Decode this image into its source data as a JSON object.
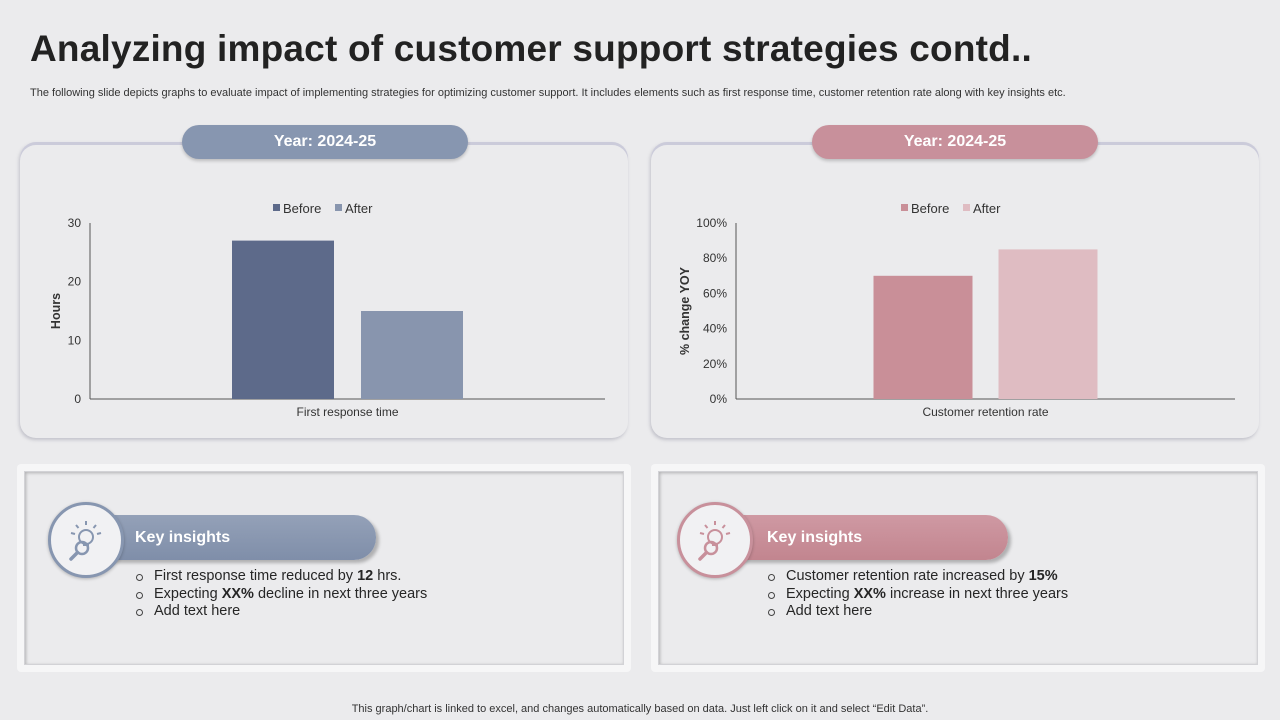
{
  "title": "Analyzing impact of customer support strategies contd..",
  "subtitle": "The following slide depicts graphs to evaluate impact of implementing strategies for optimizing customer support. It includes elements such as first response time, customer retention rate along with key insights etc.",
  "left_panel": {
    "year_label": "Year: 2024-25",
    "insights_title": "Key insights",
    "insights": [
      {
        "pre": "First response time reduced by ",
        "bold": "12",
        "post": " hrs."
      },
      {
        "pre": "Expecting ",
        "bold": "XX%",
        "post": " decline in next three years"
      },
      {
        "pre": "Add text here",
        "bold": "",
        "post": ""
      }
    ]
  },
  "right_panel": {
    "year_label": "Year: 2024-25",
    "insights_title": "Key insights",
    "insights": [
      {
        "pre": "Customer retention rate increased by ",
        "bold": "15%",
        "post": ""
      },
      {
        "pre": "Expecting ",
        "bold": "XX%",
        "post": " increase in next three years"
      },
      {
        "pre": "Add text here",
        "bold": "",
        "post": ""
      }
    ]
  },
  "footer": "This graph/chart is linked to excel, and changes automatically based on data. Just left click on it and select “Edit Data”.",
  "chart_data": [
    {
      "type": "bar",
      "categories": [
        "First response time"
      ],
      "series": [
        {
          "name": "Before",
          "values": [
            27
          ],
          "color": "#5d6a8a"
        },
        {
          "name": "After",
          "values": [
            15
          ],
          "color": "#8895ae"
        }
      ],
      "ylabel": "Hours",
      "xlabel": "",
      "ylim": [
        0,
        30
      ],
      "yticks": [
        0,
        10,
        20,
        30
      ],
      "ytick_format": "number",
      "legend": "top-center",
      "grid": false
    },
    {
      "type": "bar",
      "categories": [
        "Customer retention rate"
      ],
      "series": [
        {
          "name": "Before",
          "values": [
            70
          ],
          "color": "#c98f98"
        },
        {
          "name": "After",
          "values": [
            85
          ],
          "color": "#dfbcc2"
        }
      ],
      "ylabel": "% change YOY",
      "xlabel": "",
      "ylim": [
        0,
        100
      ],
      "yticks": [
        0,
        20,
        40,
        60,
        80,
        100
      ],
      "ytick_format": "percent",
      "legend": "top-center",
      "grid": false
    }
  ]
}
